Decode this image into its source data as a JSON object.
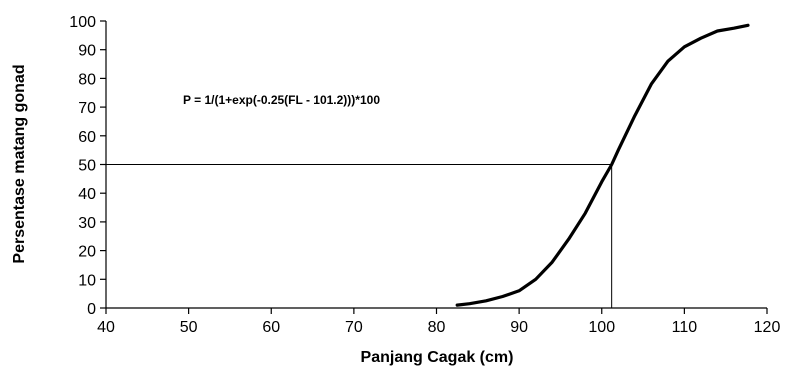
{
  "chart_data": {
    "type": "line",
    "title": "",
    "xlabel": "Panjang Cagak (cm)",
    "ylabel": "Persentase matang gonad",
    "xlim": [
      40,
      120
    ],
    "ylim": [
      0,
      100
    ],
    "x_ticks": [
      40,
      50,
      60,
      70,
      80,
      90,
      100,
      110,
      120
    ],
    "y_ticks": [
      0,
      10,
      20,
      30,
      40,
      50,
      60,
      70,
      80,
      90,
      100
    ],
    "grid": false,
    "legend": "none",
    "annotation": "P = 1/(1+exp(-0.25(FL - 101.2)))*100",
    "reference_lines": {
      "y": 50,
      "x": 101.2
    },
    "series": [
      {
        "values": [
          {
            "x": 82.5,
            "y": 1
          },
          {
            "x": 84,
            "y": 1.5
          },
          {
            "x": 86,
            "y": 2.5
          },
          {
            "x": 88,
            "y": 4
          },
          {
            "x": 90,
            "y": 6
          },
          {
            "x": 92,
            "y": 10
          },
          {
            "x": 94,
            "y": 16
          },
          {
            "x": 96,
            "y": 24
          },
          {
            "x": 98,
            "y": 33
          },
          {
            "x": 100,
            "y": 44
          },
          {
            "x": 101.2,
            "y": 50
          },
          {
            "x": 102,
            "y": 55
          },
          {
            "x": 104,
            "y": 67
          },
          {
            "x": 106,
            "y": 78
          },
          {
            "x": 108,
            "y": 86
          },
          {
            "x": 110,
            "y": 91
          },
          {
            "x": 112,
            "y": 94
          },
          {
            "x": 114,
            "y": 96.5
          },
          {
            "x": 116,
            "y": 97.5
          },
          {
            "x": 117.7,
            "y": 98.5
          }
        ],
        "color": "#000000"
      }
    ]
  }
}
